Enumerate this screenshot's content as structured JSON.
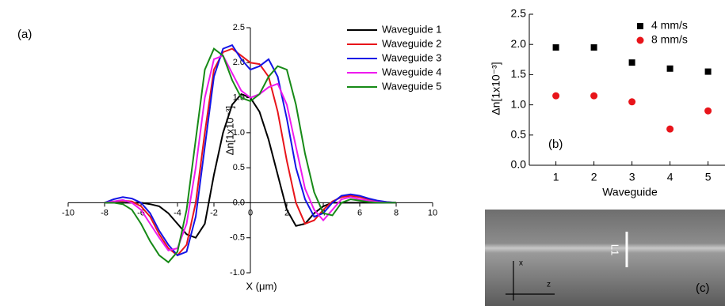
{
  "chart_data": [
    {
      "type": "line",
      "panel_label": "(a)",
      "x_label": "X (μm)",
      "y_label": "Δn[1x10⁻³]",
      "x": [
        -8,
        -7.5,
        -7,
        -6.5,
        -6,
        -5.5,
        -5,
        -4.5,
        -4,
        -3.5,
        -3,
        -2.5,
        -2,
        -1.5,
        -1,
        -0.5,
        0,
        0.5,
        1,
        1.5,
        2,
        2.5,
        3,
        3.5,
        4,
        4.5,
        5,
        5.5,
        6,
        6.5,
        7,
        7.5,
        8
      ],
      "xlim": [
        -10,
        10
      ],
      "xticks": [
        -10,
        -8,
        -6,
        -4,
        -2,
        0,
        2,
        4,
        6,
        8,
        10
      ],
      "ylim": [
        -1,
        2.5
      ],
      "yticks": [
        {
          "value": -1,
          "label": "-1.0"
        },
        -0.5,
        {
          "value": 0,
          "label": "0.0"
        },
        0.5,
        {
          "value": 1,
          "label": "1.0"
        },
        1.5,
        {
          "value": 2,
          "label": "2.0"
        },
        2.5
      ],
      "series": [
        {
          "name": "Waveguide 1",
          "color": "#000000",
          "values": [
            0,
            0,
            0,
            0,
            0,
            -0.02,
            -0.05,
            -0.15,
            -0.3,
            -0.45,
            -0.5,
            -0.3,
            0.4,
            1.0,
            1.4,
            1.55,
            1.5,
            1.3,
            0.9,
            0.4,
            -0.1,
            -0.33,
            -0.3,
            -0.15,
            -0.05,
            0,
            0,
            0,
            0,
            0,
            0,
            0,
            0
          ]
        },
        {
          "name": "Waveguide 2",
          "color": "#e8141a",
          "values": [
            0,
            0.02,
            0.03,
            0.02,
            -0.05,
            -0.2,
            -0.45,
            -0.65,
            -0.75,
            -0.6,
            0.0,
            1.0,
            1.9,
            2.15,
            2.2,
            2.1,
            2.0,
            1.98,
            1.8,
            1.3,
            0.6,
            0.0,
            -0.3,
            -0.25,
            -0.1,
            0.02,
            0.08,
            0.1,
            0.08,
            0.05,
            0.02,
            0.01,
            0
          ]
        },
        {
          "name": "Waveguide 3",
          "color": "#1414e6",
          "values": [
            0,
            0.05,
            0.08,
            0.06,
            0.0,
            -0.15,
            -0.4,
            -0.6,
            -0.75,
            -0.7,
            -0.2,
            0.8,
            1.8,
            2.2,
            2.25,
            2.05,
            1.9,
            1.95,
            2.05,
            1.8,
            1.2,
            0.5,
            0.05,
            -0.2,
            -0.15,
            0.0,
            0.1,
            0.12,
            0.1,
            0.06,
            0.03,
            0.01,
            0
          ]
        },
        {
          "name": "Waveguide 4",
          "color": "#ee1aee",
          "values": [
            0,
            0.02,
            0.04,
            0.0,
            -0.1,
            -0.3,
            -0.5,
            -0.68,
            -0.65,
            -0.3,
            0.5,
            1.5,
            2.05,
            2.1,
            1.85,
            1.6,
            1.5,
            1.55,
            1.65,
            1.7,
            1.4,
            0.8,
            0.2,
            -0.1,
            -0.25,
            -0.1,
            0.05,
            0.08,
            0.05,
            0.03,
            0.01,
            0,
            0
          ]
        },
        {
          "name": "Waveguide 5",
          "color": "#178a17",
          "values": [
            0,
            0,
            -0.02,
            -0.1,
            -0.3,
            -0.55,
            -0.75,
            -0.85,
            -0.7,
            -0.1,
            0.9,
            1.9,
            2.2,
            2.1,
            1.75,
            1.5,
            1.45,
            1.55,
            1.8,
            1.95,
            1.9,
            1.4,
            0.7,
            0.15,
            -0.15,
            -0.18,
            0.0,
            0.05,
            0.03,
            0.01,
            0,
            0,
            0
          ]
        }
      ]
    },
    {
      "type": "scatter",
      "panel_label": "(b)",
      "x_label": "Waveguide",
      "y_label": "Δn[1x10⁻³]",
      "x": [
        1,
        2,
        3,
        4,
        5
      ],
      "xlim": [
        0.3,
        5.7
      ],
      "xticks": [
        1,
        2,
        3,
        4,
        5
      ],
      "ylim": [
        0,
        2.5
      ],
      "yticks": [
        {
          "value": 0,
          "label": "0.0"
        },
        0.5,
        {
          "value": 1,
          "label": "1.0"
        },
        1.5,
        {
          "value": 2,
          "label": "2.0"
        },
        2.5
      ],
      "series": [
        {
          "name": "4 mm/s",
          "color": "#000000",
          "marker": "square",
          "values": [
            1.95,
            1.95,
            1.7,
            1.6,
            1.55
          ]
        },
        {
          "name": "8 mm/s",
          "color": "#e8141a",
          "marker": "circle",
          "values": [
            1.15,
            1.15,
            1.05,
            0.6,
            0.9
          ]
        }
      ]
    }
  ],
  "image_panel": {
    "label": "(c)",
    "marker": "L1",
    "axis_x": "x",
    "axis_z": "z"
  }
}
